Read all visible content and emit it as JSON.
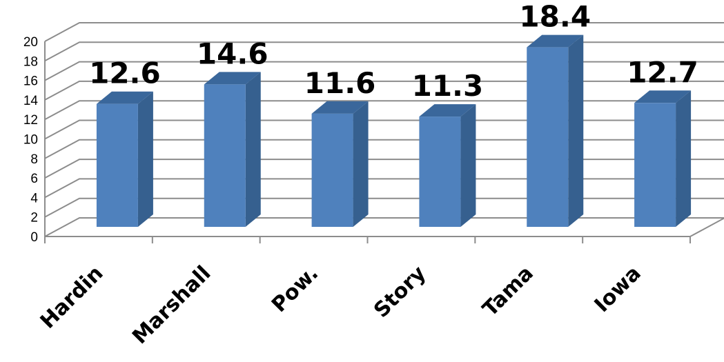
{
  "chart_data": {
    "type": "bar",
    "categories": [
      "Hardin",
      "Marshall",
      "Pow.",
      "Story",
      "Tama",
      "Iowa"
    ],
    "values": [
      12.6,
      14.6,
      11.6,
      11.3,
      18.4,
      12.7
    ],
    "data_labels": [
      "12.6",
      "14.6",
      "11.6",
      "11.3",
      "18.4",
      "12.7"
    ],
    "y_ticks": [
      "0",
      "2",
      "4",
      "6",
      "8",
      "10",
      "12",
      "14",
      "16",
      "18",
      "20"
    ],
    "title": "",
    "xlabel": "",
    "ylabel": "",
    "ylim": [
      0,
      20
    ],
    "grid": true,
    "style": "3d-column",
    "colors": {
      "bar_front": "#4f81bd",
      "bar_side": "#36608f",
      "bar_top": "#3a679b",
      "grid": "#8c8c8c"
    }
  }
}
